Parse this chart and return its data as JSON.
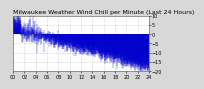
{
  "title": "Milwaukee Weather Wind Chill per Minute (Last 24 Hours)",
  "bg_color": "#d8d8d8",
  "plot_bg_color": "#ffffff",
  "bar_color": "#0000cc",
  "ylim": [
    -20,
    10
  ],
  "yticks": [
    -20,
    -15,
    -10,
    -5,
    0,
    5,
    10
  ],
  "num_points": 1440,
  "title_fontsize": 4.5,
  "tick_fontsize": 3.5,
  "grid_color": "#aaaaaa"
}
